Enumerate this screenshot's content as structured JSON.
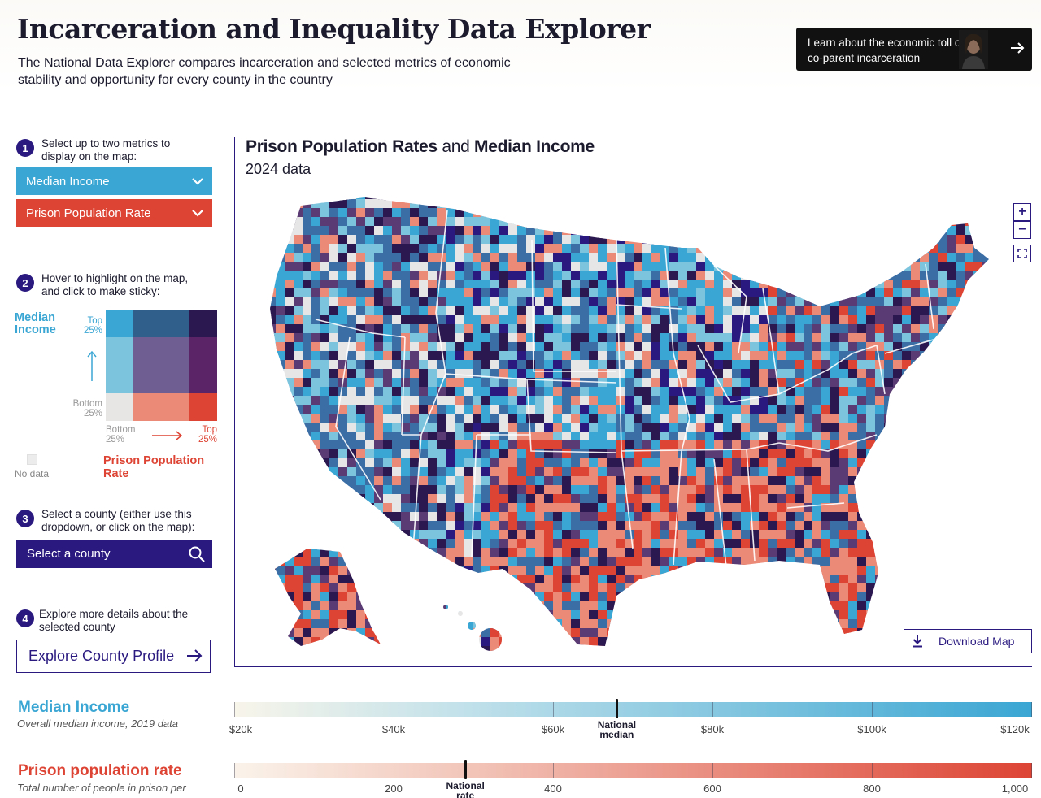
{
  "header": {
    "title": "Incarceration and Inequality Data Explorer",
    "subtitle": "The National Data Explorer compares incarceration and selected metrics of economic stability and opportunity for every county in the country",
    "promo_text": "Learn about the economic toll of co-parent incarceration"
  },
  "steps": [
    {
      "number": "1",
      "label": "Select up to two metrics to display on the map:"
    },
    {
      "number": "2",
      "label": "Hover to highlight on the map, and click to make sticky:"
    },
    {
      "number": "3",
      "label": "Select a county (either use this dropdown, or click on the map):"
    },
    {
      "number": "4",
      "label": "Explore more details about the selected county"
    }
  ],
  "metric_select": {
    "primary": "Median Income",
    "secondary": "Prison Population Rate"
  },
  "legend": {
    "y_title": "Median Income",
    "x_title": "Prison Population Rate",
    "top_label": "Top 25%",
    "bottom_label": "Bottom 25%",
    "no_data": "No data"
  },
  "county_search": {
    "placeholder": "Select a county"
  },
  "explore_button": "Explore County Profile",
  "map": {
    "title_metric_1": "Prison Population Rates",
    "title_connector": "and",
    "title_metric_2": "Median Income",
    "year_label": "2024 data",
    "zoom_in": "+",
    "zoom_out": "−",
    "download_label": "Download Map"
  },
  "colors": {
    "blue_high": "#3aa6d3",
    "blue_mid": "#7cc4de",
    "red_high": "#dd4434",
    "red_mid": "#ec8a78",
    "purple_high": "#2c1850",
    "purple_mid": "#5b3b74",
    "navy": "#2a1a80",
    "steel": "#3c6ea6",
    "nodata": "#e6e6e6"
  },
  "scales": {
    "income": {
      "title": "Median Income",
      "note": "Overall median income, 2019 data",
      "min": 20000,
      "max": 120000,
      "tick_values": [
        20000,
        40000,
        60000,
        80000,
        100000,
        120000
      ],
      "ticks": [
        "$20k",
        "$40k",
        "$60k",
        "$80k",
        "$100k",
        "$120k"
      ],
      "national_value": 68000,
      "national_label": "National median"
    },
    "prison": {
      "title": "Prison population rate",
      "note": "Total number of people in prison per",
      "min": 0,
      "max": 1000,
      "tick_values": [
        0,
        200,
        400,
        600,
        800,
        1000
      ],
      "ticks": [
        "0",
        "200",
        "400",
        "600",
        "800",
        "1,000"
      ],
      "national_value": 290,
      "national_label": "National rate"
    }
  }
}
